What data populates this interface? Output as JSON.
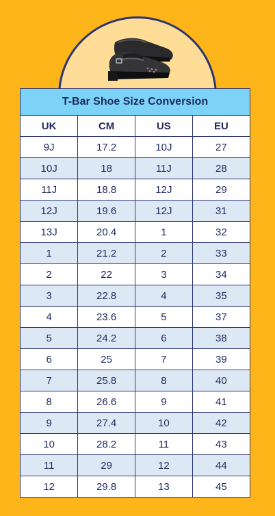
{
  "title": "T-Bar Shoe Size Conversion",
  "image": {
    "icon": "shoe-icon"
  },
  "colors": {
    "background": "#FDB51A",
    "header": "#7DD3F7",
    "stripe": "#DCE9F4",
    "border": "#2C3572"
  },
  "columns": [
    "UK",
    "CM",
    "US",
    "EU"
  ],
  "rows": [
    [
      "9J",
      "17.2",
      "10J",
      "27"
    ],
    [
      "10J",
      "18",
      "11J",
      "28"
    ],
    [
      "11J",
      "18.8",
      "12J",
      "29"
    ],
    [
      "12J",
      "19.6",
      "12J",
      "31"
    ],
    [
      "13J",
      "20.4",
      "1",
      "32"
    ],
    [
      "1",
      "21.2",
      "2",
      "33"
    ],
    [
      "2",
      "22",
      "3",
      "34"
    ],
    [
      "3",
      "22.8",
      "4",
      "35"
    ],
    [
      "4",
      "23.6",
      "5",
      "37"
    ],
    [
      "5",
      "24.2",
      "6",
      "38"
    ],
    [
      "6",
      "25",
      "7",
      "39"
    ],
    [
      "7",
      "25.8",
      "8",
      "40"
    ],
    [
      "8",
      "26.6",
      "9",
      "41"
    ],
    [
      "9",
      "27.4",
      "10",
      "42"
    ],
    [
      "10",
      "28.2",
      "11",
      "43"
    ],
    [
      "11",
      "29",
      "12",
      "44"
    ],
    [
      "12",
      "29.8",
      "13",
      "45"
    ]
  ]
}
